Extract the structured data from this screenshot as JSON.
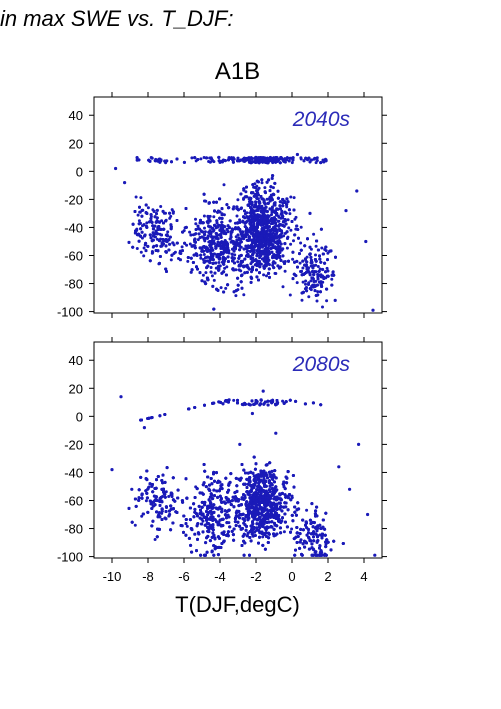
{
  "heading": "in max SWE vs. T_DJF:",
  "scenario": "A1B",
  "xlabel": "T(DJF,degC)",
  "chart_data": [
    {
      "type": "scatter",
      "panel_label": "2040s",
      "xlim": [
        -11,
        5
      ],
      "ylim": [
        -101,
        53
      ],
      "x_ticks": [
        -10,
        -8,
        -6,
        -4,
        -2,
        0,
        2,
        4
      ],
      "x_tick_labels_shown": false,
      "y_ticks": [
        -100,
        -80,
        -60,
        -40,
        -20,
        0,
        20,
        40
      ],
      "point_color": "#1a1ab8",
      "label_color": "#2b2bb8",
      "sample_points": [
        [
          -9.8,
          2
        ],
        [
          -9.3,
          -8
        ],
        [
          -8.6,
          8
        ],
        [
          -8.1,
          -24
        ],
        [
          -7.4,
          -36
        ],
        [
          -6.8,
          -52
        ],
        [
          -6.2,
          -63
        ],
        [
          -5.6,
          -72
        ],
        [
          -5.0,
          -78
        ],
        [
          -4.4,
          -82
        ],
        [
          -3.8,
          -86
        ],
        [
          -3.2,
          -62
        ],
        [
          -2.5,
          -44
        ],
        [
          -1.8,
          -22
        ],
        [
          -1.1,
          -5
        ],
        [
          -0.4,
          9
        ],
        [
          0.3,
          12
        ],
        [
          1.0,
          -30
        ],
        [
          1.7,
          -70
        ],
        [
          2.4,
          -92
        ],
        [
          3.0,
          -28
        ],
        [
          3.6,
          -14
        ],
        [
          4.1,
          -50
        ],
        [
          4.5,
          -99
        ]
      ]
    },
    {
      "type": "scatter",
      "panel_label": "2080s",
      "xlim": [
        -11,
        5
      ],
      "ylim": [
        -101,
        53
      ],
      "x_ticks": [
        -10,
        -8,
        -6,
        -4,
        -2,
        0,
        2,
        4
      ],
      "x_tick_labels_shown": true,
      "y_ticks": [
        -100,
        -80,
        -60,
        -40,
        -20,
        0,
        20,
        40
      ],
      "point_color": "#1a1ab8",
      "label_color": "#2b2bb8",
      "sample_points": [
        [
          -10.0,
          -38
        ],
        [
          -9.5,
          14
        ],
        [
          -8.9,
          -52
        ],
        [
          -8.2,
          -8
        ],
        [
          -7.5,
          -60
        ],
        [
          -6.8,
          -70
        ],
        [
          -6.1,
          -78
        ],
        [
          -5.4,
          -84
        ],
        [
          -4.8,
          -90
        ],
        [
          -4.1,
          -66
        ],
        [
          -3.5,
          -48
        ],
        [
          -2.9,
          -20
        ],
        [
          -2.2,
          2
        ],
        [
          -1.6,
          18
        ],
        [
          -0.9,
          -12
        ],
        [
          -0.2,
          -58
        ],
        [
          0.5,
          -88
        ],
        [
          1.2,
          -95
        ],
        [
          1.9,
          -99
        ],
        [
          2.6,
          -36
        ],
        [
          3.2,
          -52
        ],
        [
          3.7,
          -20
        ],
        [
          4.2,
          -70
        ],
        [
          4.6,
          -99
        ]
      ]
    }
  ]
}
